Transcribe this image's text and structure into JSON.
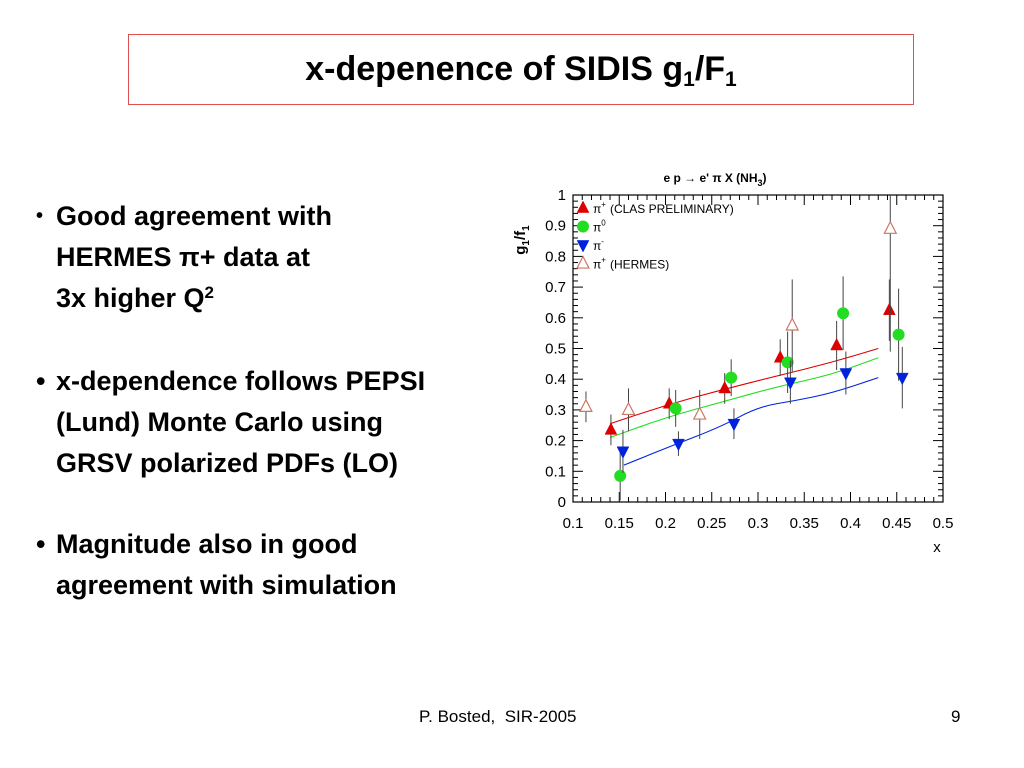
{
  "slide": {
    "title_main": "x-depenence of SIDIS g",
    "title_sub1": "1",
    "title_slash": "/F",
    "title_sub2": "1"
  },
  "bullets": [
    {
      "lines": [
        {
          "text": "Good agreement with"
        },
        {
          "text": "HERMES π+ data at"
        },
        {
          "text": "3x higher Q",
          "sup": "2"
        }
      ]
    },
    {
      "lines": [
        {
          "text": "x-dependence follows PEPSI"
        },
        {
          "text": "(Lund) Monte Carlo using"
        },
        {
          "text": "GRSV polarized PDFs (LO)"
        }
      ]
    },
    {
      "lines": [
        {
          "text": "Magnitude also in good"
        },
        {
          "text": "agreement with simulation"
        }
      ]
    }
  ],
  "footer": {
    "author": "P. Bosted,  SIR-2005",
    "page": "9"
  },
  "chart_data": {
    "type": "scatter",
    "title": "e p → e' π X (NH",
    "title_sub": "3",
    "title_close": ")",
    "xlabel": "x",
    "ylabel": "g",
    "ylabel_sub1": "1",
    "ylabel_mid": "/f",
    "ylabel_sub2": "1",
    "xlim": [
      0.1,
      0.5
    ],
    "ylim": [
      0,
      1
    ],
    "xticks": [
      "0.1",
      "0.15",
      "0.2",
      "0.25",
      "0.3",
      "0.35",
      "0.4",
      "0.45",
      "0.5"
    ],
    "yticks": [
      "0",
      "0.1",
      "0.2",
      "0.3",
      "0.4",
      "0.5",
      "0.6",
      "0.7",
      "0.8",
      "0.9",
      "1"
    ],
    "legend_position": "top-left",
    "series": [
      {
        "name": "π",
        "name_sup": "+",
        "name_suffix": "(CLAS PRELIMINARY)",
        "marker": "triangle-up-filled",
        "color": "#dd0000",
        "points": [
          {
            "x": 0.141,
            "y": 0.235,
            "err": 0.05
          },
          {
            "x": 0.204,
            "y": 0.32,
            "err": 0.05
          },
          {
            "x": 0.264,
            "y": 0.37,
            "err": 0.05
          },
          {
            "x": 0.324,
            "y": 0.47,
            "err": 0.06
          },
          {
            "x": 0.385,
            "y": 0.51,
            "err": 0.08
          },
          {
            "x": 0.442,
            "y": 0.625,
            "err": 0.1
          }
        ]
      },
      {
        "name": "π",
        "name_sup": "0",
        "name_suffix": "",
        "marker": "circle-filled",
        "color": "#22dd22",
        "points": [
          {
            "x": 0.151,
            "y": 0.085,
            "err": 0.08
          },
          {
            "x": 0.211,
            "y": 0.305,
            "err": 0.06
          },
          {
            "x": 0.271,
            "y": 0.405,
            "err": 0.06
          },
          {
            "x": 0.332,
            "y": 0.455,
            "err": 0.1
          },
          {
            "x": 0.392,
            "y": 0.615,
            "err": 0.12
          },
          {
            "x": 0.452,
            "y": 0.545,
            "err": 0.15
          }
        ]
      },
      {
        "name": "π",
        "name_sup": "-",
        "name_suffix": "",
        "marker": "triangle-down-filled",
        "color": "#0022dd",
        "points": [
          {
            "x": 0.154,
            "y": 0.165,
            "err": 0.07
          },
          {
            "x": 0.214,
            "y": 0.19,
            "err": 0.04
          },
          {
            "x": 0.274,
            "y": 0.255,
            "err": 0.05
          },
          {
            "x": 0.335,
            "y": 0.39,
            "err": 0.07
          },
          {
            "x": 0.395,
            "y": 0.42,
            "err": 0.07
          },
          {
            "x": 0.456,
            "y": 0.405,
            "err": 0.1
          }
        ]
      },
      {
        "name": "π",
        "name_sup": "+",
        "name_suffix": "(HERMES)",
        "marker": "triangle-up-open",
        "color": "#cc7766",
        "points": [
          {
            "x": 0.114,
            "y": 0.31,
            "err": 0.05
          },
          {
            "x": 0.16,
            "y": 0.3,
            "err": 0.07
          },
          {
            "x": 0.237,
            "y": 0.285,
            "err": 0.08
          },
          {
            "x": 0.337,
            "y": 0.575,
            "err": 0.15
          },
          {
            "x": 0.443,
            "y": 0.89,
            "err": 0.4
          }
        ]
      }
    ],
    "curves": [
      {
        "color": "#dd0000",
        "points": [
          [
            0.14,
            0.255
          ],
          [
            0.2,
            0.315
          ],
          [
            0.26,
            0.365
          ],
          [
            0.32,
            0.41
          ],
          [
            0.38,
            0.455
          ],
          [
            0.43,
            0.5
          ]
        ]
      },
      {
        "color": "#22dd22",
        "points": [
          [
            0.14,
            0.21
          ],
          [
            0.2,
            0.275
          ],
          [
            0.26,
            0.325
          ],
          [
            0.32,
            0.375
          ],
          [
            0.38,
            0.415
          ],
          [
            0.43,
            0.47
          ]
        ]
      },
      {
        "color": "#0022dd",
        "points": [
          [
            0.155,
            0.12
          ],
          [
            0.2,
            0.175
          ],
          [
            0.26,
            0.245
          ],
          [
            0.3,
            0.31
          ],
          [
            0.34,
            0.33
          ],
          [
            0.38,
            0.355
          ],
          [
            0.43,
            0.405
          ]
        ]
      }
    ]
  }
}
